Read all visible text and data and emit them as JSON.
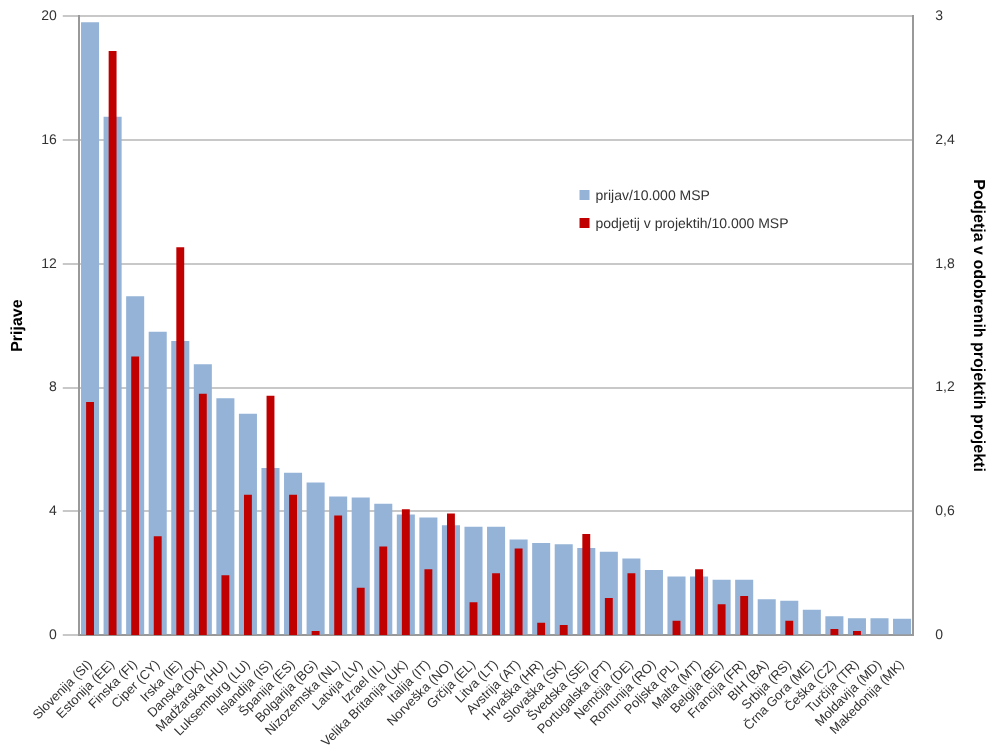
{
  "chart_data": {
    "type": "bar",
    "ylabel": "Prijave",
    "y2label": "Podjetja v odobrenih projektih projekti",
    "categories": [
      "Slovenija (SI)",
      "Estonija (EE)",
      "Finska (FI)",
      "Ciper (CY)",
      "Irska (IE)",
      "Danska (DK)",
      "Madžarska (HU)",
      "Luksemburg (LU)",
      "Islandija (IS)",
      "Španija (ES)",
      "Bolgarija (BG)",
      "Nizozemska (NL)",
      "Latvija (LV)",
      "Izrael (IL)",
      "Velika Britanija (UK)",
      "Italija (IT)",
      "Norveška (NO)",
      "Grčija (EL)",
      "Litva (LT)",
      "Avstrija (AT)",
      "Hrvaška (HR)",
      "Slovaška (SK)",
      "Švedska (SE)",
      "Portugalska (PT)",
      "Nemčija (DE)",
      "Romunija (RO)",
      "Poljska (PL)",
      "Malta (MT)",
      "Belgija (BE)",
      "Francija (FR)",
      "BIH (BA)",
      "Srbija (RS)",
      "Črna Gora (ME)",
      "Češka (CZ)",
      "Turčija (TR)",
      "Moldavija (MD)",
      "Makedonija (MK)"
    ],
    "series": [
      {
        "name": "prijav/10.000 MSP",
        "color": "#95b3d7",
        "values": [
          19.8,
          16.75,
          10.95,
          9.8,
          9.5,
          8.75,
          7.65,
          7.15,
          5.4,
          5.25,
          4.93,
          4.48,
          4.45,
          4.25,
          3.9,
          3.8,
          3.55,
          3.5,
          3.5,
          3.09,
          2.98,
          2.94,
          2.82,
          2.7,
          2.48,
          2.11,
          1.9,
          1.9,
          1.79,
          1.79,
          1.16,
          1.11,
          0.82,
          0.61,
          0.55,
          0.55,
          0.53
        ]
      },
      {
        "name": "podjetij v projektih/10.000 MSP",
        "color": "#c00000",
        "axis": "y2",
        "values": [
          1.13,
          2.83,
          1.35,
          0.48,
          1.88,
          1.17,
          0.29,
          0.68,
          1.16,
          0.68,
          0.02,
          0.58,
          0.23,
          0.43,
          0.61,
          0.32,
          0.59,
          0.16,
          0.3,
          0.42,
          0.06,
          0.05,
          0.49,
          0.18,
          0.3,
          0,
          0.07,
          0.32,
          0.15,
          0.19,
          0,
          0.07,
          0,
          0.03,
          0.02,
          0,
          0
        ]
      }
    ],
    "ylim": [
      0,
      20
    ],
    "yticks": [
      0,
      4,
      8,
      12,
      16,
      20
    ],
    "y2lim": [
      0,
      3
    ],
    "y2ticks": [
      0,
      {
        "value": 0.6,
        "label": "0,6"
      },
      {
        "value": 1.2,
        "label": "1,2"
      },
      {
        "value": 1.8,
        "label": "1,8"
      },
      {
        "value": 2.4,
        "label": "2,4"
      },
      3
    ],
    "grid": "y",
    "legend": "top right"
  }
}
